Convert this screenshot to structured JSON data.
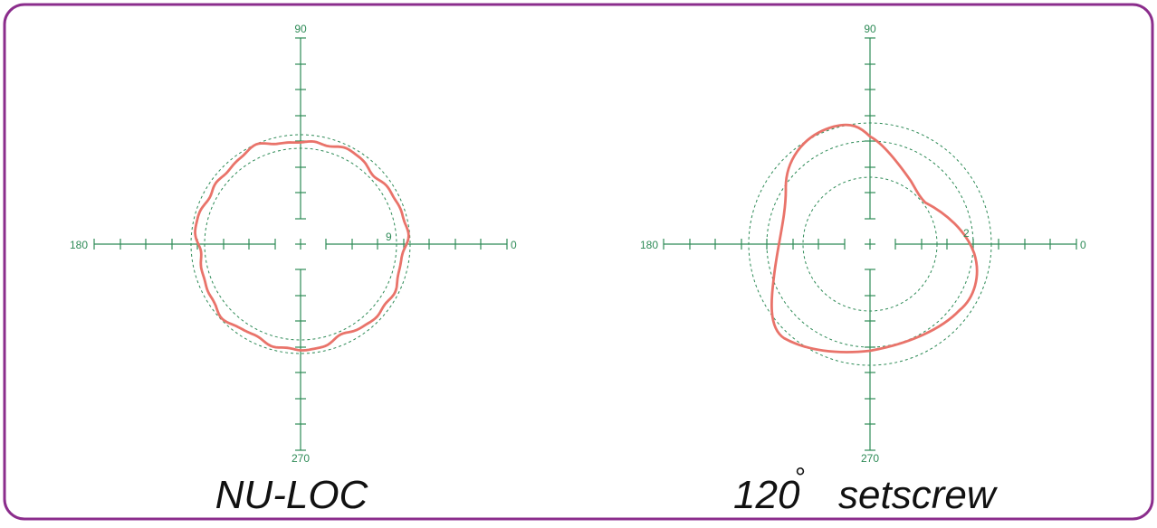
{
  "colors": {
    "frame": "#8b2d8c",
    "axis": "#2e8b57",
    "trace": "#e9736a",
    "caption": "#111111"
  },
  "plots": [
    {
      "axis_labels": {
        "top": "90",
        "left": "180",
        "right": "0",
        "bottom": "270"
      },
      "scale_label": "9",
      "caption": "NU-LOC",
      "caption_symbol": ""
    },
    {
      "axis_labels": {
        "top": "90",
        "left": "180",
        "right": "0",
        "bottom": "270"
      },
      "scale_label": "2",
      "caption": "120",
      "caption_symbol": "°",
      "caption_suffix": "setscrew"
    }
  ]
}
